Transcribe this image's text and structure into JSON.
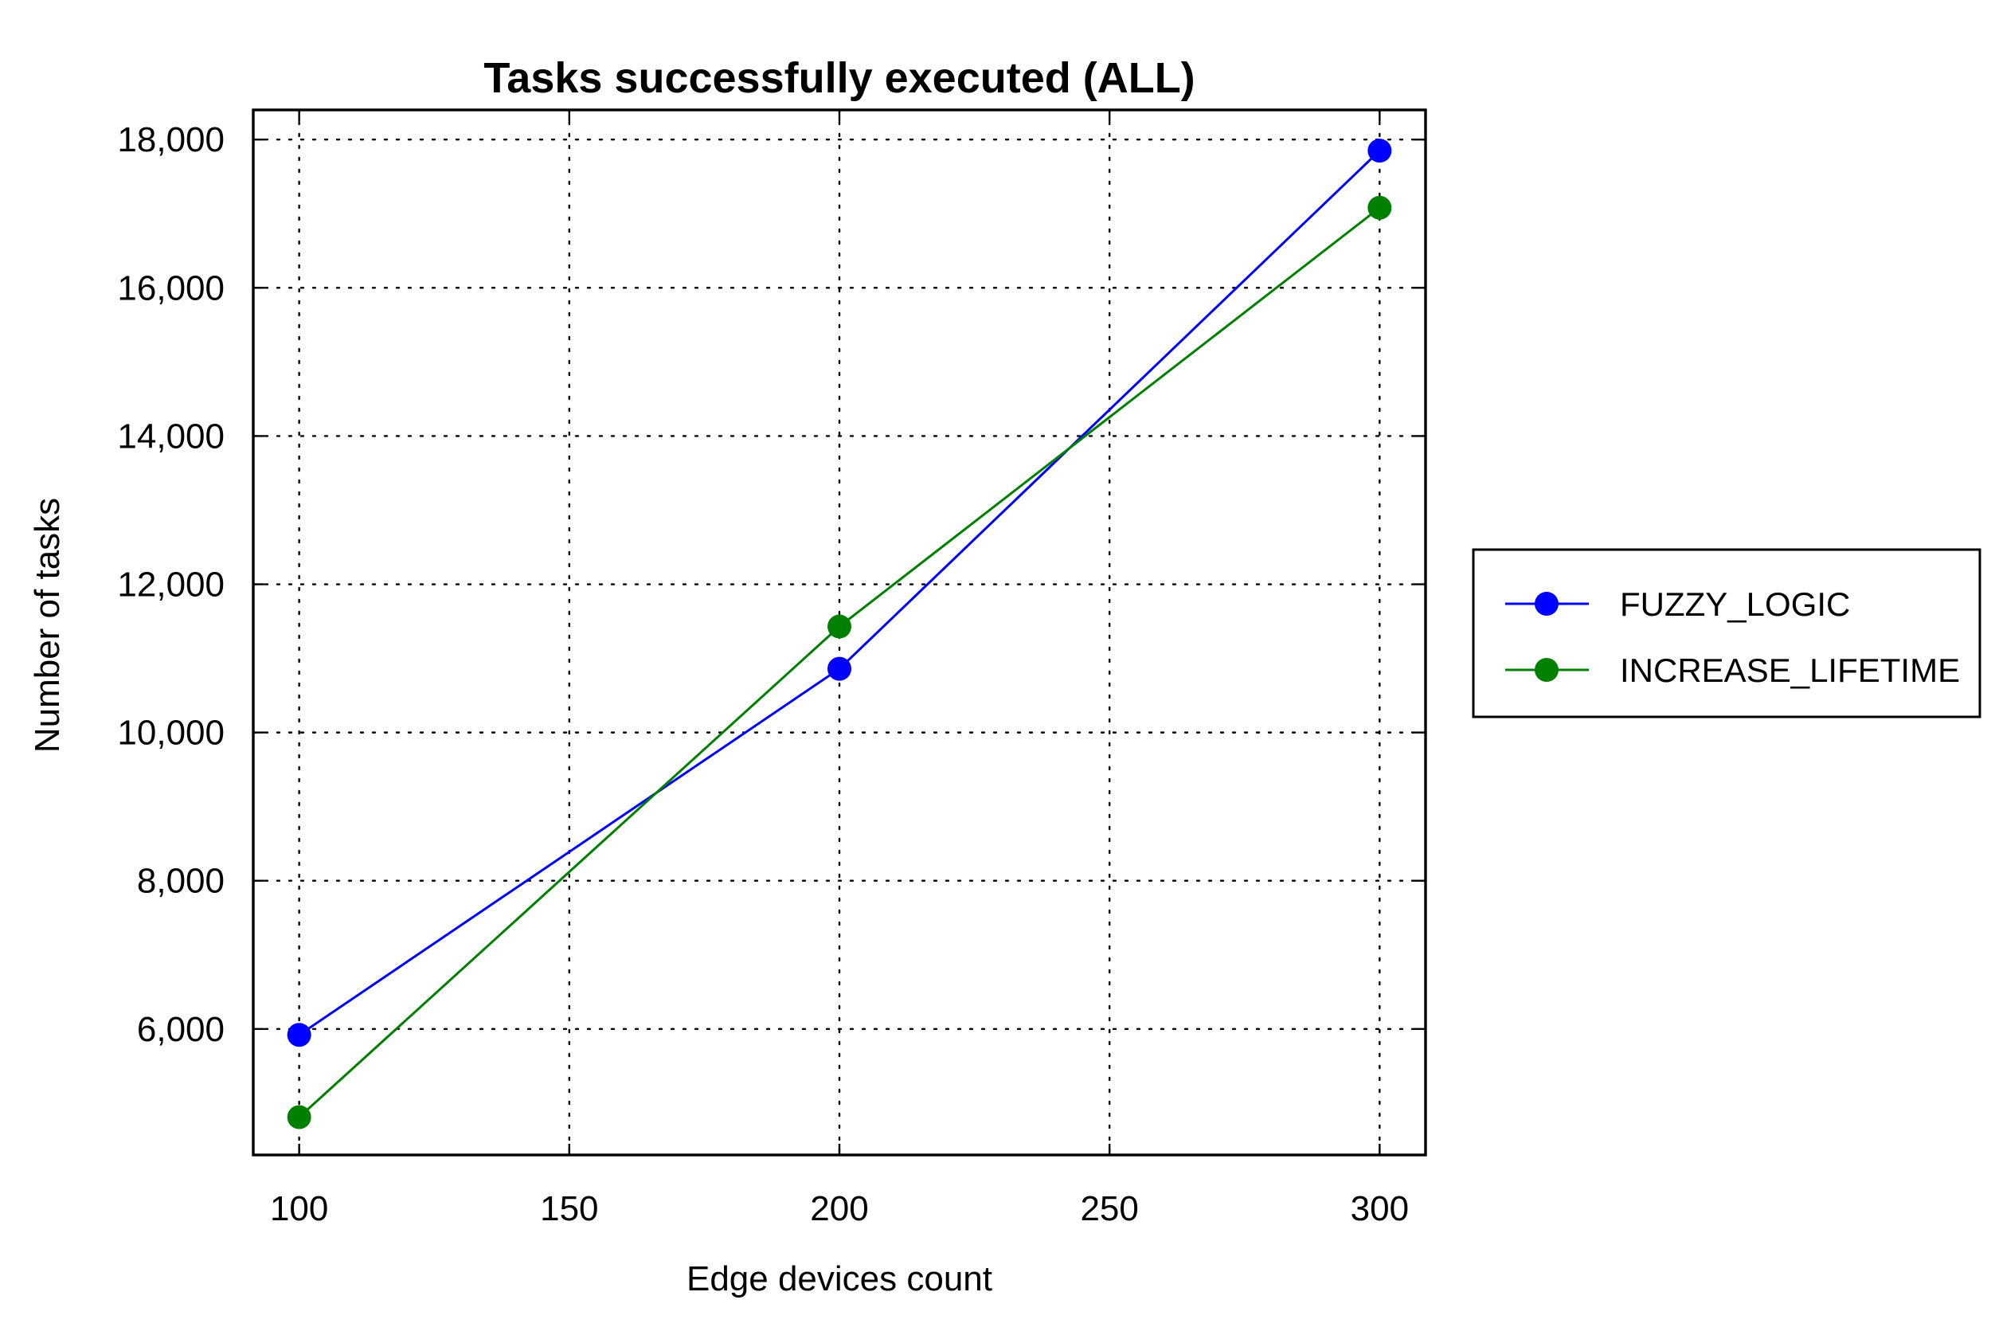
{
  "chart_data": {
    "type": "line",
    "title": "Tasks successfully executed (ALL)",
    "xlabel": "Edge devices count",
    "ylabel": "Number of tasks",
    "x": [
      100,
      200,
      300
    ],
    "xlim": [
      91.5,
      308.5
    ],
    "ylim": [
      4300,
      18400
    ],
    "x_ticks": [
      100,
      150,
      200,
      250,
      300
    ],
    "x_tick_labels": [
      "100",
      "150",
      "200",
      "250",
      "300"
    ],
    "y_ticks": [
      6000,
      8000,
      10000,
      12000,
      14000,
      16000,
      18000
    ],
    "y_tick_labels": [
      "6,000",
      "8,000",
      "10,000",
      "12,000",
      "14,000",
      "16,000",
      "18,000"
    ],
    "grid": true,
    "legend_position": "right, outside plot",
    "series": [
      {
        "name": "FUZZY_LOGIC",
        "color": "#0000ff",
        "marker": "circle",
        "values": [
          5920,
          10860,
          17850
        ]
      },
      {
        "name": "INCREASE_LIFETIME",
        "color": "#008000",
        "marker": "circle",
        "values": [
          4810,
          11430,
          17080
        ]
      }
    ]
  }
}
